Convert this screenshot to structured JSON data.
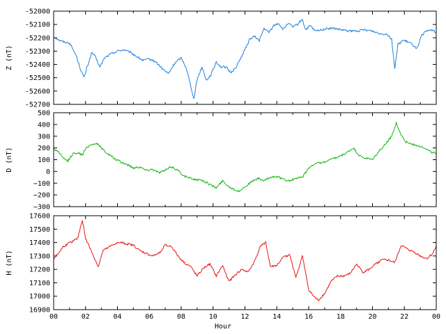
{
  "chart_data": [
    {
      "type": "line",
      "ylabel": "Z (nT)",
      "ylim": [
        -52700,
        -52000
      ],
      "yticks": [
        "-52000",
        "-52100",
        "-52200",
        "-52300",
        "-52400",
        "-52500",
        "-52600",
        "-52700"
      ],
      "ytick_values": [
        -52000,
        -52100,
        -52200,
        -52300,
        -52400,
        -52500,
        -52600,
        -52700
      ],
      "xlim": [
        0,
        24
      ],
      "color": "#1e7fdc",
      "series": [
        {
          "x": [
            0,
            0.3,
            0.6,
            1.0,
            1.4,
            1.7,
            1.9,
            2.1,
            2.4,
            2.6,
            2.9,
            3.2,
            3.6,
            4.0,
            4.4,
            4.8,
            5.2,
            5.6,
            6.0,
            6.4,
            6.8,
            7.2,
            7.6,
            8.0,
            8.3,
            8.6,
            8.8,
            9.0,
            9.3,
            9.6,
            9.9,
            10.2,
            10.5,
            10.8,
            11.1,
            11.4,
            11.7,
            12.0,
            12.3,
            12.6,
            12.9,
            13.2,
            13.5,
            13.8,
            14.1,
            14.4,
            14.7,
            15.0,
            15.3,
            15.6,
            15.8,
            16.1,
            16.4,
            16.8,
            17.2,
            17.6,
            18.0,
            18.5,
            19.0,
            19.5,
            20.0,
            20.5,
            20.9,
            21.2,
            21.4,
            21.6,
            21.9,
            22.2,
            22.5,
            22.8,
            23.1,
            23.4,
            23.7,
            24.0
          ],
          "y": [
            -52190,
            -52215,
            -52230,
            -52240,
            -52330,
            -52440,
            -52500,
            -52420,
            -52310,
            -52340,
            -52420,
            -52350,
            -52320,
            -52300,
            -52290,
            -52310,
            -52340,
            -52370,
            -52360,
            -52380,
            -52430,
            -52470,
            -52390,
            -52350,
            -52420,
            -52560,
            -52660,
            -52510,
            -52420,
            -52520,
            -52470,
            -52380,
            -52420,
            -52420,
            -52460,
            -52430,
            -52360,
            -52290,
            -52210,
            -52190,
            -52220,
            -52130,
            -52160,
            -52110,
            -52090,
            -52140,
            -52090,
            -52120,
            -52100,
            -52060,
            -52140,
            -52110,
            -52150,
            -52140,
            -52130,
            -52130,
            -52140,
            -52150,
            -52150,
            -52140,
            -52150,
            -52170,
            -52170,
            -52210,
            -52430,
            -52250,
            -52220,
            -52230,
            -52250,
            -52280,
            -52180,
            -52150,
            -52140,
            -52160
          ]
        }
      ]
    },
    {
      "type": "line",
      "ylabel": "D (nT)",
      "ylim": [
        -300,
        500
      ],
      "yticks": [
        "500",
        "400",
        "300",
        "200",
        "100",
        "0",
        "−100",
        "−200",
        "−300"
      ],
      "ytick_values": [
        500,
        400,
        300,
        200,
        100,
        0,
        -100,
        -200,
        -300
      ],
      "xlim": [
        0,
        24
      ],
      "color": "#14b414",
      "series": [
        {
          "x": [
            0,
            0.3,
            0.6,
            0.9,
            1.2,
            1.5,
            1.8,
            2.1,
            2.4,
            2.7,
            3.0,
            3.4,
            3.8,
            4.2,
            4.6,
            5.0,
            5.4,
            5.8,
            6.2,
            6.6,
            7.0,
            7.4,
            7.8,
            8.2,
            8.6,
            9.0,
            9.4,
            9.8,
            10.2,
            10.6,
            11.0,
            11.3,
            11.6,
            12.0,
            12.4,
            12.8,
            13.2,
            13.6,
            14.0,
            14.4,
            14.8,
            15.2,
            15.6,
            16.0,
            16.4,
            16.8,
            17.2,
            17.6,
            18.0,
            18.4,
            18.8,
            19.2,
            19.6,
            20.0,
            20.4,
            20.8,
            21.2,
            21.5,
            21.8,
            22.1,
            22.5,
            22.9,
            23.3,
            23.6,
            24.0
          ],
          "y": [
            190,
            170,
            110,
            90,
            150,
            160,
            140,
            210,
            230,
            240,
            200,
            150,
            110,
            80,
            60,
            30,
            40,
            10,
            20,
            -10,
            10,
            40,
            10,
            -40,
            -60,
            -70,
            -80,
            -110,
            -140,
            -80,
            -130,
            -150,
            -170,
            -130,
            -90,
            -60,
            -80,
            -50,
            -40,
            -70,
            -80,
            -60,
            -50,
            30,
            70,
            70,
            90,
            110,
            130,
            160,
            200,
            130,
            110,
            100,
            170,
            230,
            300,
            410,
            310,
            250,
            230,
            220,
            200,
            170,
            150
          ]
        }
      ]
    },
    {
      "type": "line",
      "ylabel": "H (nT)",
      "xlabel": "Hour",
      "ylim": [
        16900,
        17600
      ],
      "yticks": [
        "17600",
        "17500",
        "17400",
        "17300",
        "17200",
        "17100",
        "17000",
        "16900"
      ],
      "ytick_values": [
        17600,
        17500,
        17400,
        17300,
        17200,
        17100,
        17000,
        16900
      ],
      "xlim": [
        0,
        24
      ],
      "xticks": [
        "00",
        "02",
        "04",
        "06",
        "08",
        "10",
        "12",
        "14",
        "16",
        "18",
        "20",
        "22",
        "00"
      ],
      "xtick_values": [
        0,
        2,
        4,
        6,
        8,
        10,
        12,
        14,
        16,
        18,
        20,
        22,
        24
      ],
      "color": "#e61414",
      "series": [
        {
          "x": [
            0,
            0.3,
            0.6,
            0.9,
            1.2,
            1.5,
            1.8,
            2.0,
            2.2,
            2.5,
            2.8,
            3.1,
            3.4,
            3.8,
            4.2,
            4.6,
            5.0,
            5.4,
            5.8,
            6.2,
            6.6,
            7.0,
            7.4,
            7.8,
            8.2,
            8.6,
            9.0,
            9.4,
            9.8,
            10.2,
            10.6,
            11.0,
            11.4,
            11.8,
            12.2,
            12.6,
            13.0,
            13.3,
            13.6,
            14.0,
            14.4,
            14.8,
            15.2,
            15.6,
            16.0,
            16.3,
            16.6,
            17.0,
            17.4,
            17.8,
            18.2,
            18.6,
            19.0,
            19.4,
            19.8,
            20.2,
            20.6,
            21.0,
            21.4,
            21.8,
            22.2,
            22.6,
            23.0,
            23.4,
            23.8,
            24.0
          ],
          "y": [
            17280,
            17320,
            17370,
            17390,
            17410,
            17430,
            17570,
            17430,
            17380,
            17300,
            17220,
            17340,
            17360,
            17390,
            17400,
            17390,
            17380,
            17340,
            17320,
            17300,
            17320,
            17380,
            17370,
            17300,
            17250,
            17220,
            17150,
            17210,
            17240,
            17150,
            17230,
            17110,
            17160,
            17200,
            17180,
            17260,
            17380,
            17400,
            17220,
            17230,
            17290,
            17310,
            17140,
            17300,
            17050,
            17000,
            16970,
            17020,
            17110,
            17150,
            17150,
            17170,
            17240,
            17180,
            17200,
            17240,
            17270,
            17270,
            17250,
            17380,
            17350,
            17330,
            17300,
            17280,
            17320,
            17380
          ]
        }
      ]
    }
  ]
}
